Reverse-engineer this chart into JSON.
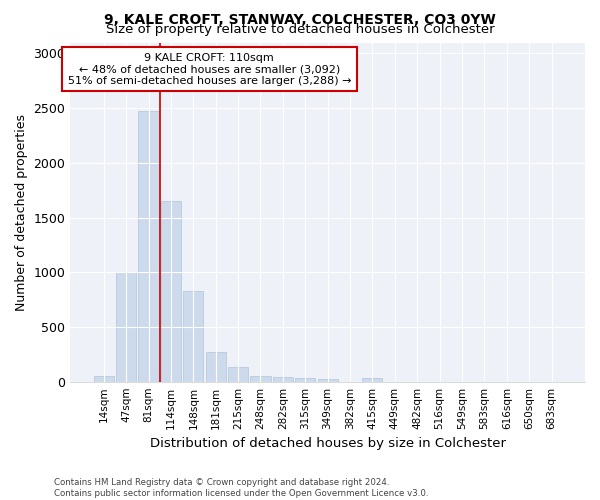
{
  "title": "9, KALE CROFT, STANWAY, COLCHESTER, CO3 0YW",
  "subtitle": "Size of property relative to detached houses in Colchester",
  "xlabel": "Distribution of detached houses by size in Colchester",
  "ylabel": "Number of detached properties",
  "bar_color": "#ccdaeb",
  "bar_edge_color": "#b0c4de",
  "categories": [
    "14sqm",
    "47sqm",
    "81sqm",
    "114sqm",
    "148sqm",
    "181sqm",
    "215sqm",
    "248sqm",
    "282sqm",
    "315sqm",
    "349sqm",
    "382sqm",
    "415sqm",
    "449sqm",
    "482sqm",
    "516sqm",
    "549sqm",
    "583sqm",
    "616sqm",
    "650sqm",
    "683sqm"
  ],
  "values": [
    55,
    1000,
    2470,
    1650,
    830,
    275,
    130,
    55,
    45,
    30,
    20,
    0,
    30,
    0,
    0,
    0,
    0,
    0,
    0,
    0,
    0
  ],
  "red_line_x": 2.5,
  "annotation_line1": "9 KALE CROFT: 110sqm",
  "annotation_line2": "← 48% of detached houses are smaller (3,092)",
  "annotation_line3": "51% of semi-detached houses are larger (3,288) →",
  "annotation_box_color": "#ffffff",
  "annotation_box_edge_color": "#cc0000",
  "red_line_color": "#cc0000",
  "ylim": [
    0,
    3100
  ],
  "yticks": [
    0,
    500,
    1000,
    1500,
    2000,
    2500,
    3000
  ],
  "footer1": "Contains HM Land Registry data © Crown copyright and database right 2024.",
  "footer2": "Contains public sector information licensed under the Open Government Licence v3.0.",
  "background_color": "#ffffff",
  "plot_background_color": "#eef2f8",
  "grid_color": "#ffffff"
}
